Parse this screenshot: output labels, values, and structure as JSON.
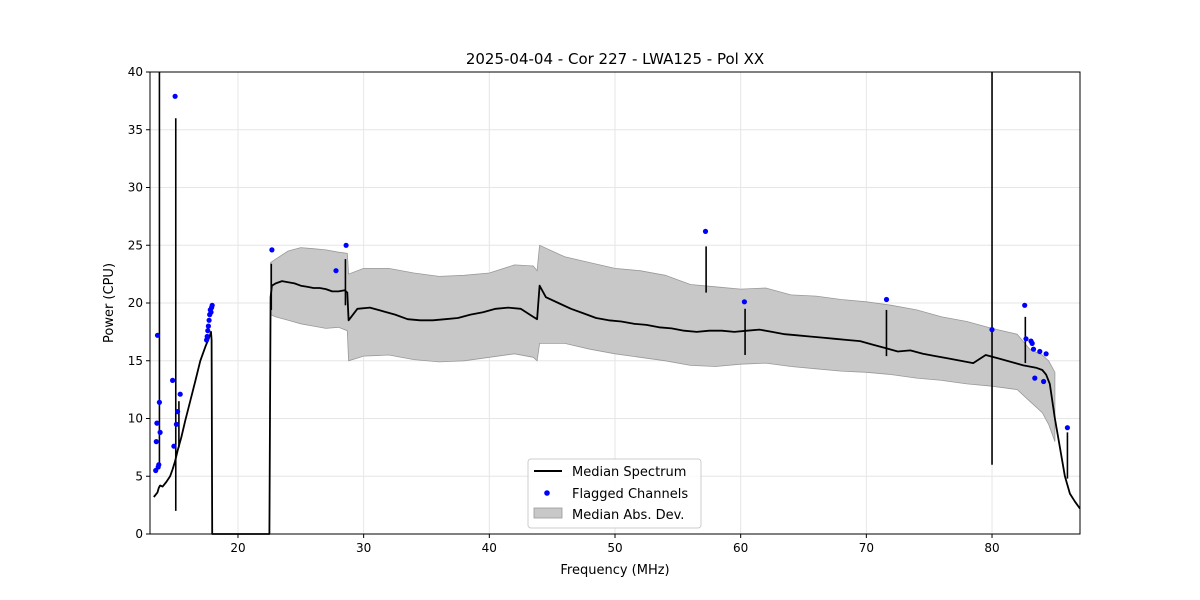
{
  "chart_data": {
    "type": "line",
    "title": "2025-04-04 - Cor 227 - LWA125 - Pol XX",
    "xlabel": "Frequency (MHz)",
    "ylabel": "Power (CPU)",
    "xlim": [
      13.0,
      87.0
    ],
    "ylim": [
      0,
      40
    ],
    "xticks": [
      20,
      30,
      40,
      50,
      60,
      70,
      80
    ],
    "yticks": [
      0,
      5,
      10,
      15,
      20,
      25,
      30,
      35,
      40
    ],
    "grid": true,
    "legend_position": "lower center",
    "legend": [
      "Median Spectrum",
      "Flagged Channels",
      "Median Abs. Dev."
    ],
    "colors": {
      "median": "#000000",
      "flagged": "#0000ff",
      "mad_fill": "#c8c8c8",
      "mad_edge": "#999999"
    },
    "series": [
      {
        "name": "Median Spectrum",
        "kind": "line",
        "x": [
          13.3,
          13.6,
          13.7,
          13.8,
          14.0,
          14.3,
          14.6,
          14.8,
          15.0,
          15.2,
          15.5,
          15.8,
          16.2,
          16.6,
          17.0,
          17.4,
          17.7,
          17.85,
          17.9,
          17.95,
          22.5,
          22.6,
          22.7,
          23.0,
          23.5,
          24.0,
          24.5,
          25.0,
          25.5,
          26.0,
          26.5,
          27.0,
          27.5,
          28.0,
          28.5,
          28.7,
          28.8,
          29.5,
          30.5,
          31.5,
          32.5,
          33.5,
          34.5,
          35.5,
          36.5,
          37.5,
          38.5,
          39.5,
          40.5,
          41.5,
          42.5,
          43.5,
          43.8,
          44.0,
          44.5,
          45.5,
          46.5,
          47.5,
          48.5,
          49.5,
          50.5,
          51.5,
          52.5,
          53.5,
          54.5,
          55.5,
          56.5,
          57.5,
          58.5,
          59.5,
          60.5,
          61.5,
          62.5,
          63.5,
          64.5,
          65.5,
          66.5,
          67.5,
          68.5,
          69.5,
          70.5,
          71.5,
          72.5,
          73.5,
          74.5,
          75.5,
          76.5,
          77.5,
          78.5,
          79.5,
          80.5,
          81.5,
          82.5,
          83.5,
          84.0,
          84.3,
          84.6,
          85.0,
          85.4,
          85.8,
          86.2,
          86.6,
          87.0
        ],
        "y": [
          3.2,
          3.6,
          4.0,
          4.2,
          4.1,
          4.5,
          5.0,
          5.6,
          6.3,
          7.2,
          8.4,
          9.8,
          11.5,
          13.2,
          15.0,
          16.2,
          17.0,
          17.5,
          16.8,
          0,
          0,
          20.5,
          21.5,
          21.7,
          21.9,
          21.8,
          21.7,
          21.5,
          21.4,
          21.3,
          21.3,
          21.2,
          21.0,
          21.0,
          21.1,
          20.9,
          18.5,
          19.5,
          19.6,
          19.3,
          19.0,
          18.6,
          18.5,
          18.5,
          18.6,
          18.7,
          19.0,
          19.2,
          19.5,
          19.6,
          19.5,
          18.8,
          18.6,
          21.5,
          20.5,
          20.0,
          19.5,
          19.1,
          18.7,
          18.5,
          18.4,
          18.2,
          18.1,
          17.9,
          17.8,
          17.6,
          17.5,
          17.6,
          17.6,
          17.5,
          17.6,
          17.7,
          17.5,
          17.3,
          17.2,
          17.1,
          17.0,
          16.9,
          16.8,
          16.7,
          16.4,
          16.1,
          15.8,
          15.9,
          15.6,
          15.4,
          15.2,
          15.0,
          14.8,
          15.5,
          15.2,
          14.9,
          14.6,
          14.4,
          14.2,
          13.8,
          13.0,
          10.0,
          7.5,
          5.0,
          3.5,
          2.8,
          2.2
        ]
      },
      {
        "name": "Median Abs. Dev.",
        "kind": "band",
        "x": [
          22.6,
          23.0,
          24.0,
          25.0,
          26.0,
          27.0,
          28.0,
          28.7,
          28.8,
          30.0,
          32.0,
          34.0,
          36.0,
          38.0,
          40.0,
          42.0,
          43.5,
          43.8,
          44.0,
          46.0,
          48.0,
          50.0,
          52.0,
          54.0,
          56.0,
          58.0,
          60.0,
          62.0,
          64.0,
          66.0,
          68.0,
          70.0,
          72.0,
          74.0,
          76.0,
          78.0,
          80.0,
          82.0,
          83.0,
          84.0,
          84.5,
          85.0
        ],
        "lower": [
          19.0,
          18.8,
          18.5,
          18.2,
          18.0,
          17.8,
          17.9,
          17.6,
          15.0,
          15.4,
          15.5,
          15.1,
          14.9,
          15.0,
          15.3,
          15.6,
          15.3,
          15.0,
          16.5,
          16.5,
          16.0,
          15.6,
          15.3,
          15.0,
          14.6,
          14.5,
          14.7,
          14.8,
          14.5,
          14.3,
          14.1,
          14.0,
          13.8,
          13.5,
          13.3,
          13.0,
          12.8,
          12.5,
          11.5,
          10.5,
          9.5,
          8.0
        ],
        "upper": [
          23.5,
          23.8,
          24.5,
          24.8,
          24.7,
          24.6,
          24.4,
          24.3,
          22.5,
          23.0,
          23.0,
          22.6,
          22.3,
          22.4,
          22.6,
          23.3,
          23.2,
          22.8,
          25.0,
          24.0,
          23.5,
          23.0,
          22.8,
          22.4,
          21.6,
          21.4,
          21.2,
          21.3,
          20.7,
          20.6,
          20.3,
          20.1,
          19.8,
          19.4,
          18.8,
          18.4,
          17.8,
          17.3,
          16.0,
          15.5,
          15.0,
          14.0
        ]
      },
      {
        "name": "Flagged Channels",
        "kind": "scatter",
        "x": [
          13.45,
          13.5,
          13.55,
          13.6,
          13.65,
          13.7,
          13.75,
          13.8,
          14.8,
          14.9,
          15.0,
          15.1,
          15.2,
          15.4,
          17.5,
          17.55,
          17.6,
          17.65,
          17.7,
          17.75,
          17.8,
          17.85,
          17.9,
          17.95,
          22.7,
          27.8,
          28.6,
          57.2,
          60.3,
          71.6,
          80.0,
          82.6,
          82.7,
          83.1,
          83.2,
          83.3,
          83.4,
          83.8,
          84.1,
          84.3,
          86.0
        ],
        "y": [
          5.5,
          8.0,
          9.6,
          17.2,
          5.8,
          6.0,
          11.4,
          8.8,
          13.3,
          7.6,
          37.9,
          9.5,
          10.6,
          12.1,
          16.8,
          17.1,
          17.6,
          18.0,
          18.5,
          19.0,
          19.4,
          19.2,
          19.6,
          19.8,
          24.6,
          22.8,
          25.0,
          26.2,
          20.1,
          20.3,
          17.7,
          19.8,
          16.9,
          16.7,
          16.5,
          16.0,
          13.5,
          15.8,
          13.2,
          15.6,
          9.2
        ]
      }
    ],
    "spikes": [
      {
        "x": 13.75,
        "y": 40.0
      },
      {
        "x": 15.05,
        "y": 36.0
      },
      {
        "x": 15.3,
        "y": 11.5
      },
      {
        "x": 22.65,
        "y": 23.4
      },
      {
        "x": 28.55,
        "y": 23.8
      },
      {
        "x": 57.25,
        "y": 24.9
      },
      {
        "x": 60.35,
        "y": 19.5
      },
      {
        "x": 71.6,
        "y": 19.4
      },
      {
        "x": 80.0,
        "y": 40.0
      },
      {
        "x": 82.65,
        "y": 18.8
      },
      {
        "x": 86.0,
        "y": 8.8
      }
    ]
  }
}
